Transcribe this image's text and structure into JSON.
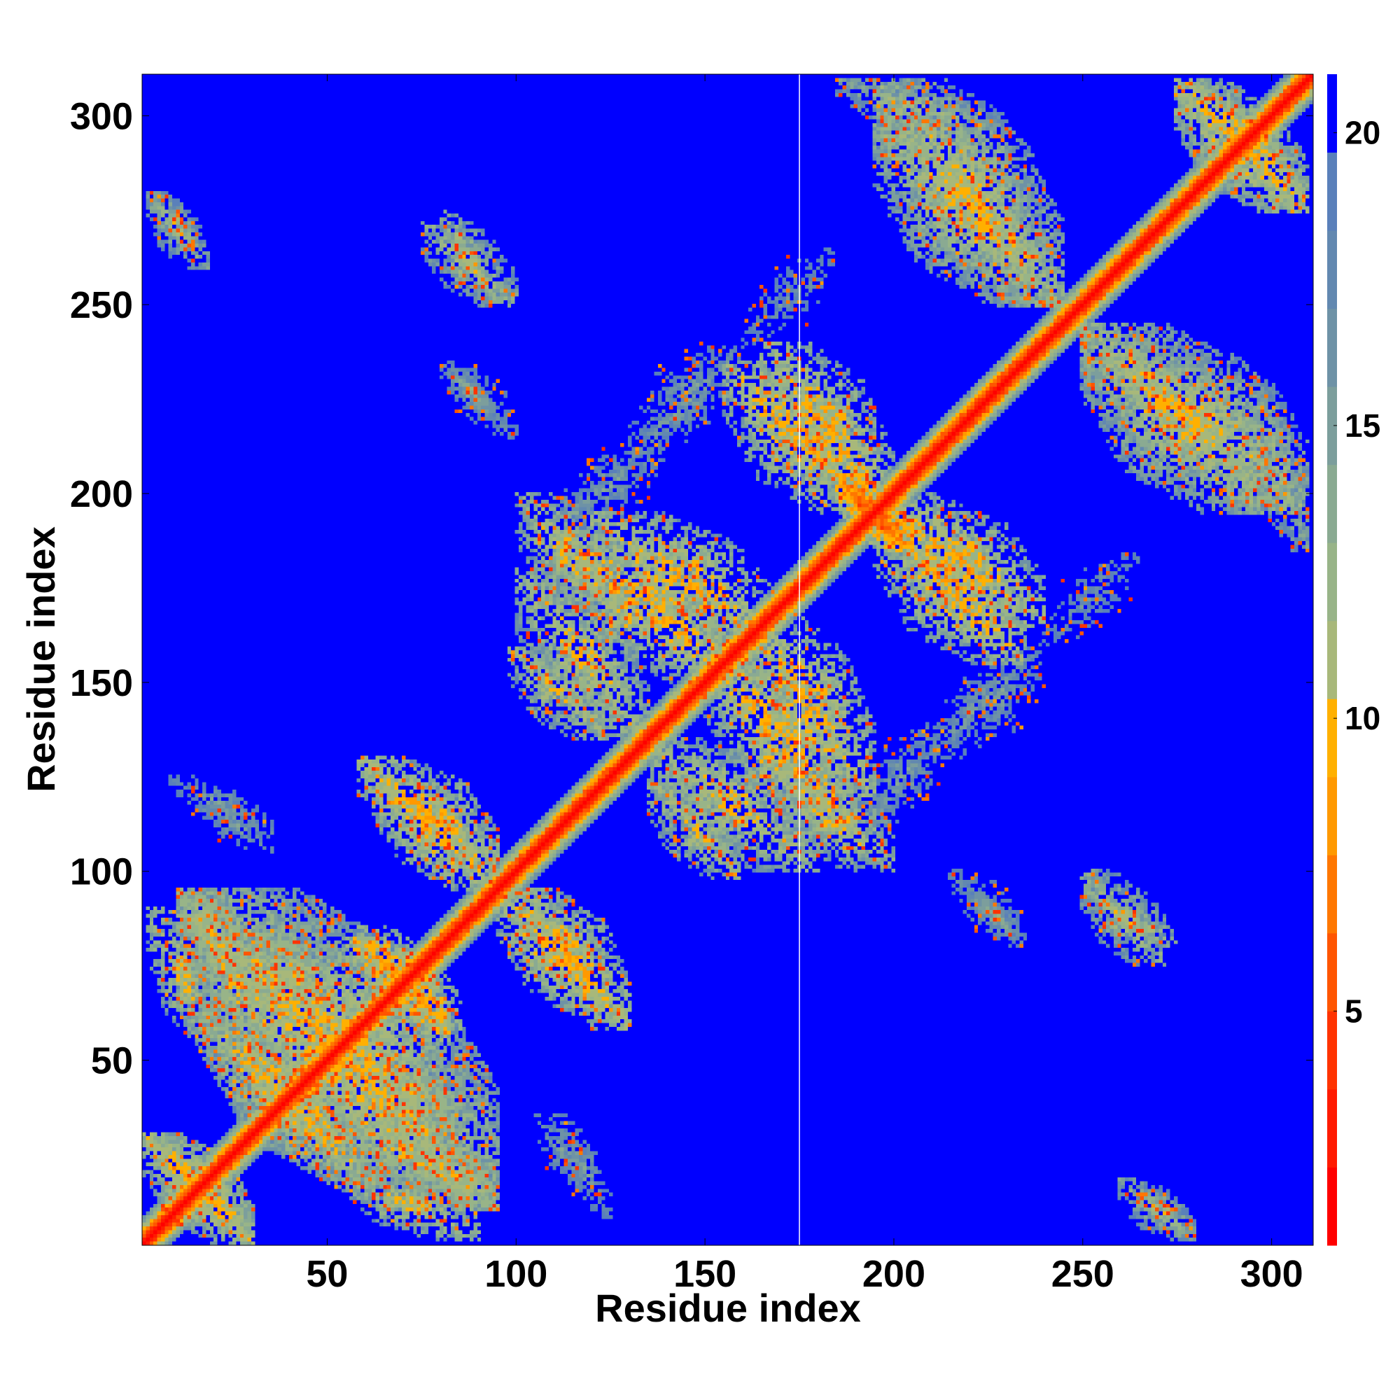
{
  "chart_data": {
    "type": "heatmap",
    "title": "",
    "xlabel": "Residue index",
    "ylabel": "Residue index",
    "xlim": [
      1,
      311
    ],
    "ylim": [
      1,
      311
    ],
    "x_ticks": [
      50,
      100,
      150,
      200,
      250,
      300
    ],
    "y_ticks": [
      50,
      100,
      150,
      200,
      250,
      300
    ],
    "x_tick_labels": [
      "50",
      "100",
      "150",
      "200",
      "250",
      "300"
    ],
    "y_tick_labels": [
      "50",
      "100",
      "150",
      "200",
      "250",
      "300"
    ],
    "colorbar": {
      "range": [
        1,
        21
      ],
      "ticks": [
        5,
        10,
        15,
        20
      ],
      "tick_labels": [
        "5",
        "10",
        "15",
        "20"
      ],
      "colors": [
        "#ff0000",
        "#ff1a00",
        "#ff3300",
        "#ff5500",
        "#ff7700",
        "#ff9900",
        "#ffb000",
        "#a8b87a",
        "#98b488",
        "#8aaa92",
        "#7c9e9c",
        "#6e92a6",
        "#6288b0",
        "#5a80ba",
        "#0000ff"
      ]
    },
    "gap_column": 175,
    "diagonal_band": {
      "center_value": 1,
      "half_width": 7
    },
    "contact_regions": [
      {
        "axis": "anti",
        "x": [
          1,
          30
        ],
        "y": [
          1,
          30
        ],
        "value": 9
      },
      {
        "axis": "anti",
        "x": [
          10,
          95
        ],
        "y": [
          10,
          95
        ],
        "value": 10
      },
      {
        "axis": "anti",
        "x": [
          28,
          60
        ],
        "y": [
          18,
          50
        ],
        "value": 9
      },
      {
        "axis": "anti",
        "x": [
          50,
          90
        ],
        "y": [
          12,
          40
        ],
        "value": 10
      },
      {
        "axis": "anti",
        "x": [
          70,
          95
        ],
        "y": [
          10,
          30
        ],
        "value": 10
      },
      {
        "axis": "anti",
        "x": [
          2,
          20
        ],
        "y": [
          55,
          90
        ],
        "value": 10
      },
      {
        "axis": "anti",
        "x": [
          30,
          55
        ],
        "y": [
          55,
          85
        ],
        "value": 11
      },
      {
        "axis": "anti",
        "x": [
          55,
          85
        ],
        "y": [
          58,
          82
        ],
        "value": 8
      },
      {
        "axis": "anti",
        "x": [
          62,
          95
        ],
        "y": [
          95,
          125
        ],
        "value": 9
      },
      {
        "axis": "anti",
        "x": [
          100,
          130
        ],
        "y": [
          58,
          95
        ],
        "value": 9
      },
      {
        "axis": "anti",
        "x": [
          100,
          135
        ],
        "y": [
          135,
          180
        ],
        "value": 10
      },
      {
        "axis": "anti",
        "x": [
          135,
          160
        ],
        "y": [
          98,
          125
        ],
        "value": 10
      },
      {
        "axis": "anti",
        "x": [
          150,
          190
        ],
        "y": [
          110,
          160
        ],
        "value": 9
      },
      {
        "axis": "anti",
        "x": [
          120,
          170
        ],
        "y": [
          160,
          195
        ],
        "value": 9
      },
      {
        "axis": "anti",
        "x": [
          165,
          200
        ],
        "y": [
          100,
          130
        ],
        "value": 10
      },
      {
        "axis": "anti",
        "x": [
          155,
          195
        ],
        "y": [
          195,
          235
        ],
        "value": 9
      },
      {
        "axis": "anti",
        "x": [
          195,
          240
        ],
        "y": [
          165,
          200
        ],
        "value": 9
      },
      {
        "axis": "anti",
        "x": [
          185,
          205
        ],
        "y": [
          185,
          205
        ],
        "value": 6
      },
      {
        "axis": "anti",
        "x": [
          195,
          245
        ],
        "y": [
          250,
          310
        ],
        "value": 10
      },
      {
        "axis": "anti",
        "x": [
          250,
          300
        ],
        "y": [
          195,
          245
        ],
        "value": 10
      },
      {
        "axis": "anti",
        "x": [
          275,
          310
        ],
        "y": [
          275,
          310
        ],
        "value": 9
      },
      {
        "axis": "anti",
        "x": [
          295,
          310
        ],
        "y": [
          185,
          230
        ],
        "value": 12
      },
      {
        "axis": "anti",
        "x": [
          2,
          18
        ],
        "y": [
          260,
          280
        ],
        "value": 12
      },
      {
        "axis": "anti",
        "x": [
          75,
          100
        ],
        "y": [
          250,
          272
        ],
        "value": 11
      },
      {
        "axis": "anti",
        "x": [
          80,
          100
        ],
        "y": [
          215,
          235
        ],
        "value": 15
      },
      {
        "axis": "anti",
        "x": [
          8,
          35
        ],
        "y": [
          110,
          125
        ],
        "value": 15
      },
      {
        "axis": "anti",
        "x": [
          220,
          235
        ],
        "y": [
          80,
          95
        ],
        "value": 14
      },
      {
        "axis": "anti",
        "x": [
          250,
          275
        ],
        "y": [
          80,
          95
        ],
        "value": 11
      },
      {
        "axis": "anti",
        "x": [
          265,
          280
        ],
        "y": [
          2,
          15
        ],
        "value": 11
      },
      {
        "axis": "anti",
        "x": [
          105,
          120
        ],
        "y": [
          15,
          35
        ],
        "value": 15
      },
      {
        "axis": "diag",
        "x": [
          110,
          140
        ],
        "y": [
          190,
          215
        ],
        "value": 15
      },
      {
        "axis": "diag",
        "x": [
          210,
          240
        ],
        "y": [
          130,
          160
        ],
        "value": 15
      },
      {
        "axis": "diag",
        "x": [
          160,
          185
        ],
        "y": [
          240,
          265
        ],
        "value": 16
      }
    ]
  }
}
